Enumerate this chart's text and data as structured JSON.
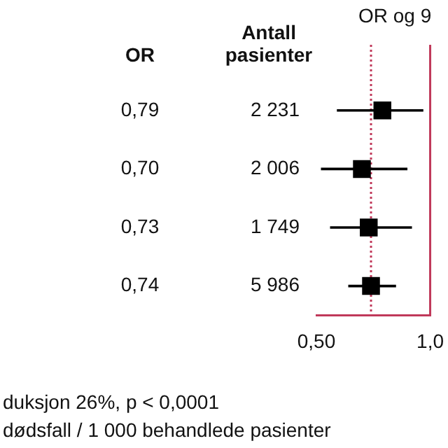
{
  "chart_data": {
    "type": "scatter",
    "orientation": "horizontal",
    "title": "OR og 9",
    "categories": [
      "2 231",
      "2 006",
      "1 749",
      "5 986"
    ],
    "series": [
      {
        "color": "#000000",
        "values": [
          0.79,
          0.7,
          0.73,
          0.74
        ],
        "errors": [
          [
            0.59,
            0.97
          ],
          [
            0.52,
            0.9
          ],
          [
            0.56,
            0.92
          ],
          [
            0.64,
            0.85
          ]
        ],
        "value_labels": [
          "0,79",
          "0,70",
          "0,73",
          "0,74"
        ]
      }
    ],
    "marker": "square",
    "xlim": [
      0.5,
      1.0
    ],
    "xticks": [
      {
        "value": 0.5,
        "label": "0,50"
      },
      {
        "value": 1.0,
        "label": "1,0"
      }
    ],
    "ref_lines": [
      {
        "axis": "x",
        "value": 0.74,
        "color": "#c0395a",
        "line_style": "dotted"
      },
      {
        "axis": "x",
        "value": 1.0,
        "color": "#c0395a",
        "line_style": "solid"
      }
    ],
    "annotations": [
      "Antall pasienter",
      "OR",
      "duksjon 26%, p < 0,0001",
      "dødsfall / 1 000 behandlede pasienter"
    ],
    "grid": false,
    "legend": false
  }
}
